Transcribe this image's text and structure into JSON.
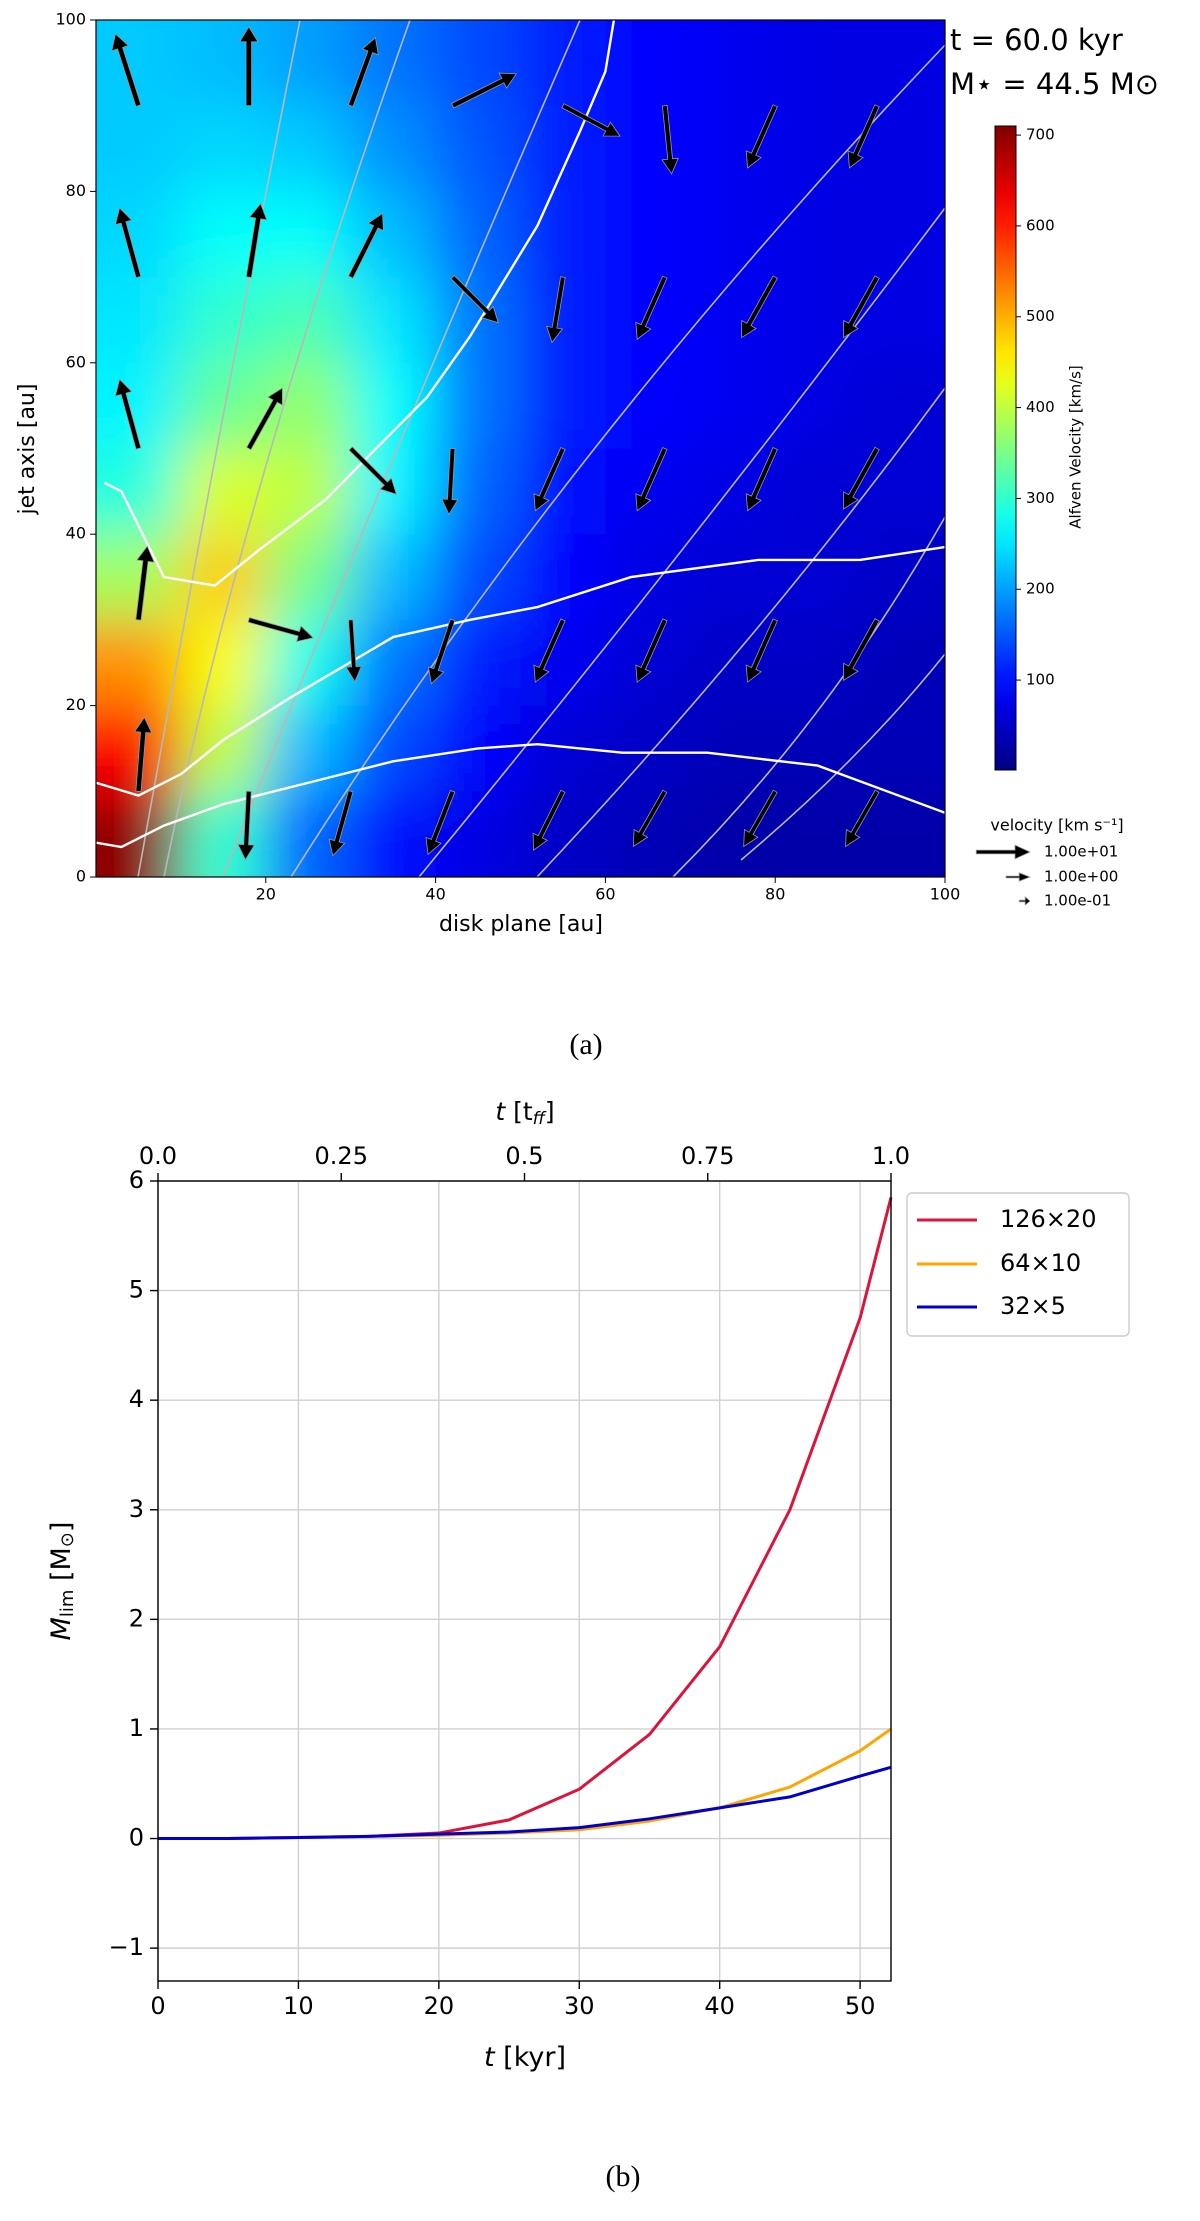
{
  "chart_data": [
    {
      "type": "heatmap",
      "xlabel": "disk plane [au]",
      "ylabel": "jet axis [au]",
      "annotations": [
        "t =  60.0 kyr",
        "M⋆ = 44.5 M⊙"
      ],
      "xlim": [
        0,
        100
      ],
      "ylim": [
        0,
        100
      ],
      "xticks": [
        20,
        40,
        60,
        80,
        100
      ],
      "yticks": [
        0,
        20,
        40,
        60,
        80,
        100
      ],
      "x": [
        5,
        15,
        25,
        35,
        45,
        55,
        65,
        75,
        85,
        95
      ],
      "y": [
        95,
        85,
        75,
        65,
        55,
        45,
        35,
        25,
        15,
        5
      ],
      "z": [
        [
          230,
          220,
          200,
          170,
          140,
          110,
          90,
          80,
          70,
          70
        ],
        [
          230,
          240,
          230,
          190,
          150,
          110,
          90,
          80,
          70,
          70
        ],
        [
          240,
          270,
          270,
          220,
          160,
          110,
          90,
          80,
          70,
          70
        ],
        [
          250,
          300,
          320,
          250,
          170,
          110,
          90,
          80,
          70,
          70
        ],
        [
          260,
          340,
          370,
          270,
          170,
          110,
          90,
          80,
          70,
          60
        ],
        [
          290,
          420,
          400,
          260,
          160,
          100,
          80,
          70,
          60,
          60
        ],
        [
          380,
          480,
          350,
          220,
          140,
          90,
          70,
          60,
          60,
          50
        ],
        [
          520,
          440,
          280,
          170,
          110,
          80,
          60,
          50,
          50,
          40
        ],
        [
          620,
          400,
          220,
          140,
          90,
          60,
          50,
          40,
          40,
          40
        ],
        [
          700,
          300,
          160,
          100,
          70,
          50,
          40,
          30,
          30,
          30
        ]
      ],
      "colorbar_label": "Alfven Velocity [km/s]",
      "clim": [
        1,
        710
      ],
      "cticks": [
        100,
        200,
        300,
        400,
        500,
        600,
        700
      ],
      "vectors": {
        "x": [
          5,
          18,
          30,
          42,
          55,
          67,
          80,
          92,
          5,
          18,
          30,
          42,
          55,
          67,
          80,
          92,
          5,
          18,
          30,
          42,
          55,
          67,
          80,
          92,
          5,
          18,
          30,
          42,
          55,
          67,
          80,
          92,
          5,
          18,
          30,
          42,
          55,
          67,
          80,
          92
        ],
        "y": [
          90,
          90,
          90,
          90,
          90,
          90,
          90,
          90,
          70,
          70,
          70,
          70,
          70,
          70,
          70,
          70,
          50,
          50,
          50,
          50,
          50,
          50,
          50,
          50,
          30,
          30,
          30,
          30,
          30,
          30,
          30,
          30,
          10,
          10,
          10,
          10,
          10,
          10,
          10,
          10
        ],
        "u": [
          -8,
          0,
          8,
          20,
          15,
          2,
          -8,
          -8,
          -6,
          4,
          10,
          12,
          -3,
          -8,
          -10,
          -10,
          -6,
          10,
          12,
          -1,
          -8,
          -8,
          -8,
          -10,
          3,
          18,
          1,
          -6,
          -8,
          -8,
          -8,
          -10,
          2,
          -1,
          -5,
          -7,
          -8,
          -8,
          -8,
          -8
        ],
        "v": [
          25,
          30,
          22,
          10,
          -8,
          -20,
          -18,
          -18,
          22,
          25,
          20,
          -12,
          -18,
          -18,
          -18,
          -18,
          22,
          18,
          -12,
          -18,
          -18,
          -18,
          -18,
          -18,
          25,
          -5,
          -15,
          -18,
          -18,
          -18,
          -18,
          -18,
          25,
          -20,
          -18,
          -18,
          -16,
          -14,
          -14,
          -14
        ]
      },
      "contours": [
        {
          "x": [
            1,
            3,
            8,
            14,
            19,
            27,
            33,
            39,
            44,
            52,
            57,
            60,
            61
          ],
          "y": [
            46,
            45,
            35,
            34,
            38,
            44,
            50,
            56,
            63,
            76,
            87,
            94,
            100
          ]
        },
        {
          "x": [
            0,
            5,
            10,
            15,
            23,
            35,
            44,
            52,
            63,
            78,
            90,
            100
          ],
          "y": [
            11,
            9.5,
            12,
            16,
            21,
            28,
            30,
            31.5,
            35,
            37,
            37,
            38.5
          ]
        },
        {
          "x": [
            0,
            3,
            8,
            15,
            25,
            35,
            45,
            52,
            62,
            72,
            85,
            100
          ],
          "y": [
            4,
            3.5,
            6,
            8.5,
            11,
            13.5,
            15,
            15.5,
            14.5,
            14.5,
            13,
            7.5
          ]
        }
      ],
      "quiver_key": {
        "title": "velocity [km s⁻¹]",
        "keys": [
          {
            "value": 10,
            "label": "1.00e+01"
          },
          {
            "value": 1,
            "label": "1.00e+00"
          },
          {
            "value": 0.1,
            "label": "1.00e-01"
          }
        ]
      },
      "caption": "(a)"
    },
    {
      "type": "line",
      "xlabel": [
        "t",
        " [kyr]"
      ],
      "ylabel": [
        "M",
        "lim",
        " [M",
        "⊙",
        "]"
      ],
      "x2label": [
        "t",
        " [t",
        "ff",
        "]"
      ],
      "xlim": [
        0,
        52.2
      ],
      "ylim": [
        -1.3,
        6
      ],
      "xticks": [
        0,
        10,
        20,
        30,
        40,
        50
      ],
      "yticks": [
        {
          "value": -1,
          "label": "−1"
        },
        0,
        1,
        2,
        3,
        4,
        5,
        6
      ],
      "x2lim": [
        0,
        1
      ],
      "x2ticks": [
        {
          "value": 0,
          "label": "0.0"
        },
        0.25,
        0.5,
        0.75,
        {
          "value": 1,
          "label": "1.0"
        }
      ],
      "grid": true,
      "legend": "outside upper right",
      "x": [
        0,
        5,
        10,
        15,
        20,
        25,
        30,
        35,
        40,
        45,
        50,
        52.2
      ],
      "series": [
        {
          "name": "126×20",
          "color": "#dc143c",
          "values": [
            0,
            0,
            0.01,
            0.02,
            0.05,
            0.17,
            0.45,
            0.95,
            1.75,
            3.0,
            4.75,
            5.85
          ]
        },
        {
          "name": "64×10",
          "color": "#ffa500",
          "values": [
            0,
            0,
            0.01,
            0.02,
            0.03,
            0.05,
            0.08,
            0.16,
            0.28,
            0.47,
            0.8,
            1.0
          ]
        },
        {
          "name": "32×5",
          "color": "#0000cd",
          "values": [
            0,
            0,
            0.01,
            0.02,
            0.04,
            0.06,
            0.1,
            0.18,
            0.28,
            0.38,
            0.57,
            0.65
          ]
        }
      ],
      "caption": "(b)"
    }
  ]
}
